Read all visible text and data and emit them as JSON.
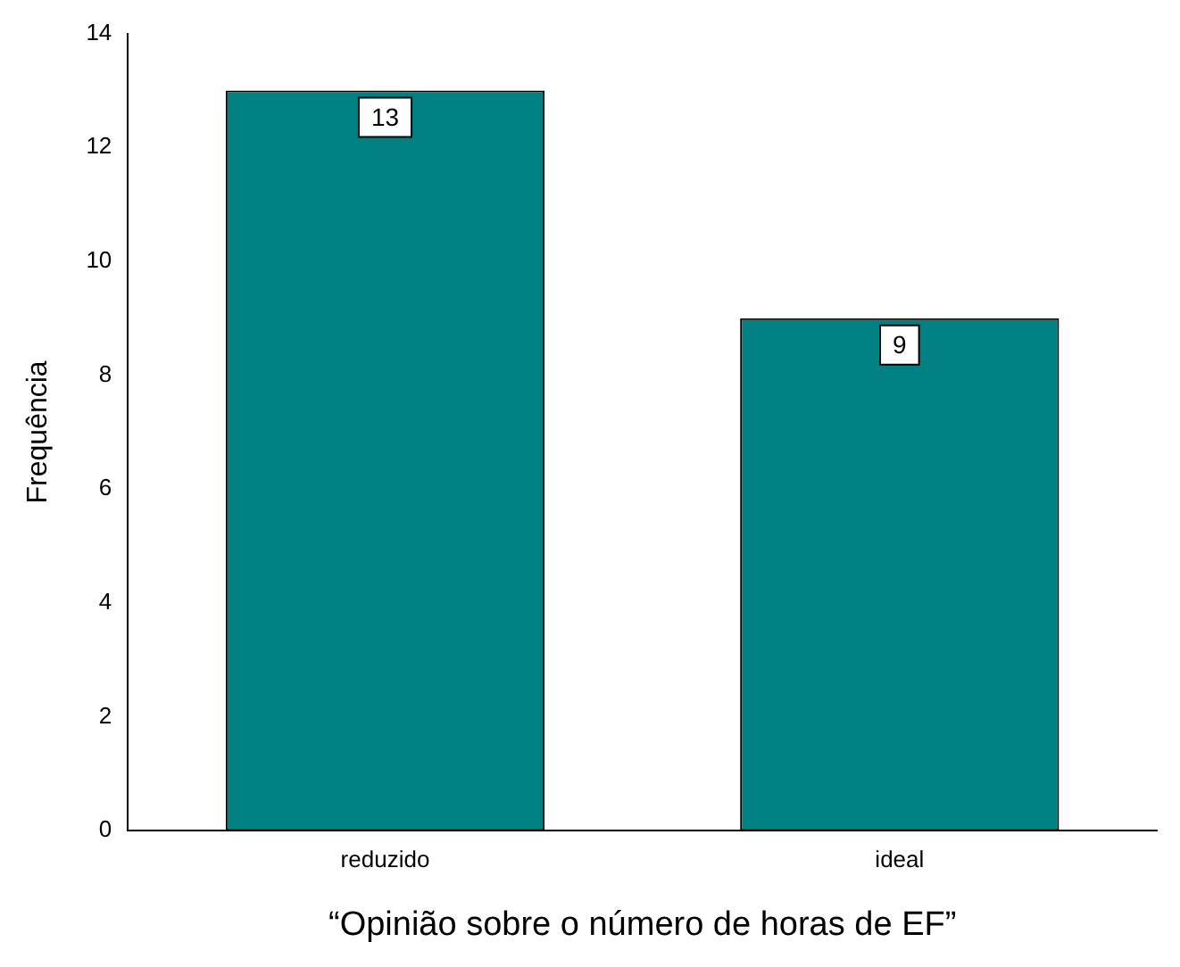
{
  "chart_data": {
    "type": "bar",
    "xlabel": "“Opinião sobre o número de horas de EF”",
    "ylabel": "Frequência",
    "categories": [
      "reduzido",
      "ideal"
    ],
    "values": [
      13,
      9
    ],
    "color": "#008080",
    "ylim": [
      0,
      14
    ],
    "yticks": [
      0,
      2,
      4,
      6,
      8,
      10,
      12,
      14
    ],
    "grid": false,
    "legend": false,
    "data_labels": true
  }
}
